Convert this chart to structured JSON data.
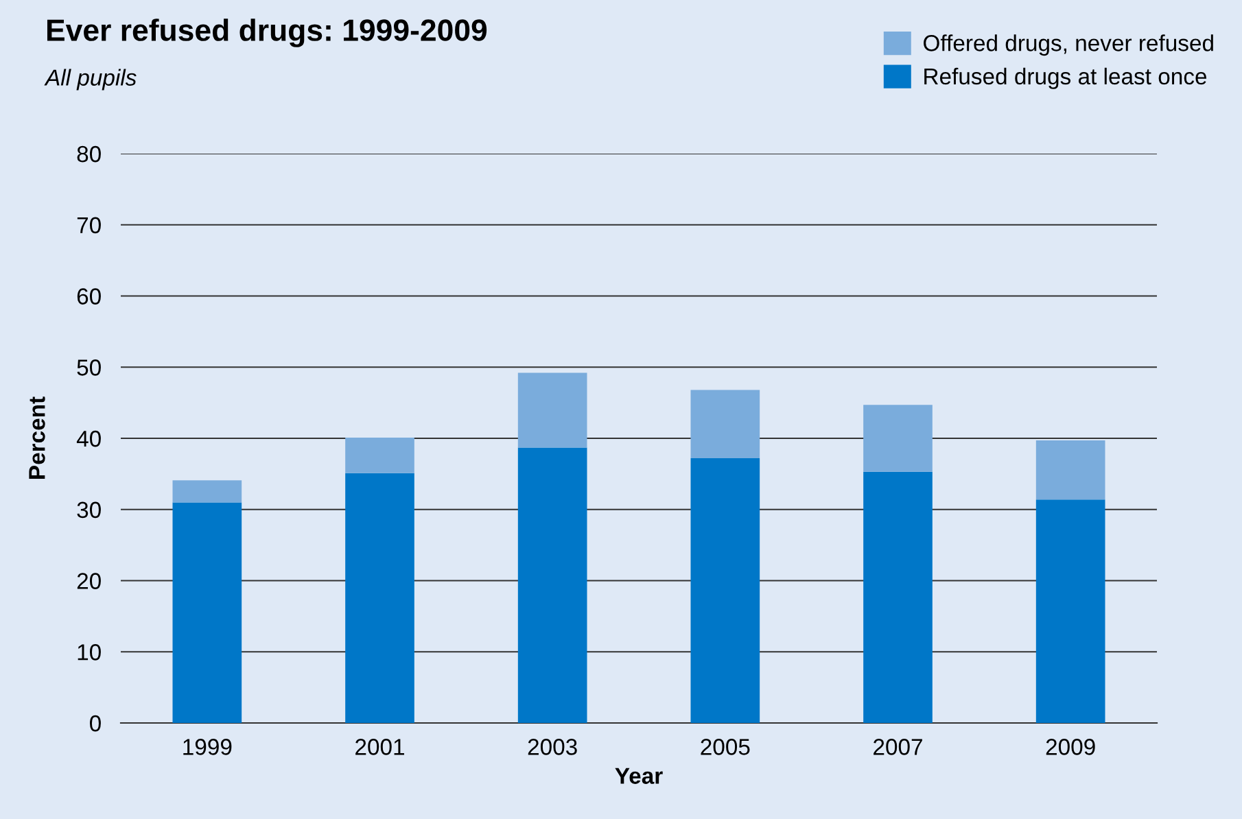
{
  "chart_data": {
    "type": "bar",
    "title": "Ever refused drugs: 1999-2009",
    "subtitle": "All pupils",
    "xlabel": "Year",
    "ylabel": "Percent",
    "categories": [
      "1999",
      "2001",
      "2003",
      "2005",
      "2007",
      "2009"
    ],
    "stacked": true,
    "series": [
      {
        "name": "Refused drugs at least once",
        "color": "#0077c8",
        "values": [
          31.0,
          35.1,
          38.7,
          37.2,
          35.3,
          31.4
        ]
      },
      {
        "name": "Offered drugs, never refused",
        "color": "#7aacdc",
        "values": [
          3.1,
          5.0,
          10.5,
          9.6,
          9.4,
          8.3
        ]
      }
    ],
    "ylim": [
      0,
      80
    ],
    "yticks": [
      0,
      10,
      20,
      30,
      40,
      50,
      60,
      70,
      80
    ],
    "grid": "y",
    "legend": "top right"
  }
}
